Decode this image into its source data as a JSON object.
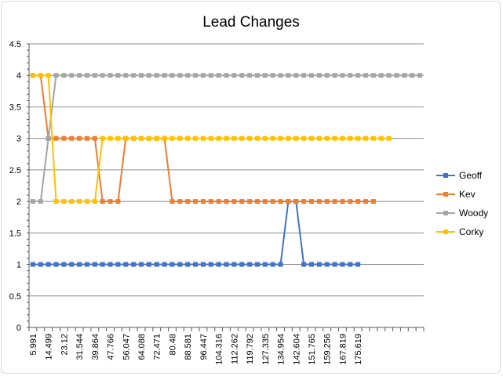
{
  "chart_data": {
    "type": "line",
    "title": "Lead Changes",
    "xlabel": "",
    "ylabel": "",
    "ylim": [
      0,
      4.5
    ],
    "yticks": [
      "0",
      "0.5",
      "1",
      "1.5",
      "2",
      "2.5",
      "3",
      "3.5",
      "4",
      "4.5"
    ],
    "grid": true,
    "legend_position": "right",
    "x_tick_labels": [
      "5.991",
      "14.499",
      "23.12",
      "31.544",
      "39.864",
      "47.766",
      "56.047",
      "64.088",
      "72.471",
      "80.48",
      "88.581",
      "96.447",
      "104.316",
      "112.262",
      "119.792",
      "127.335",
      "134.954",
      "142.604",
      "151.765",
      "159.256",
      "167.819",
      "175.619"
    ],
    "series": [
      {
        "name": "Geoff",
        "color": "#4472c4",
        "marker": "square",
        "values": [
          1,
          1,
          1,
          1,
          1,
          1,
          1,
          1,
          1,
          1,
          1,
          1,
          1,
          1,
          1,
          1,
          1,
          1,
          1,
          1,
          1,
          1,
          1,
          1,
          1,
          1,
          1,
          1,
          1,
          1,
          1,
          1,
          1,
          2,
          2,
          1,
          1,
          1,
          1,
          1,
          1,
          1,
          1
        ]
      },
      {
        "name": "Kev",
        "color": "#ed7d31",
        "marker": "square",
        "values": [
          4,
          4,
          3,
          3,
          3,
          3,
          3,
          3,
          3,
          2,
          2,
          2,
          3,
          3,
          3,
          3,
          3,
          3,
          2,
          2,
          2,
          2,
          2,
          2,
          2,
          2,
          2,
          2,
          2,
          2,
          2,
          2,
          2,
          2,
          2,
          2,
          2,
          2,
          2,
          2,
          2,
          2,
          2,
          2,
          2
        ]
      },
      {
        "name": "Woody",
        "color": "#a5a5a5",
        "marker": "square",
        "values": [
          2,
          2,
          3,
          4,
          4,
          4,
          4,
          4,
          4,
          4,
          4,
          4,
          4,
          4,
          4,
          4,
          4,
          4,
          4,
          4,
          4,
          4,
          4,
          4,
          4,
          4,
          4,
          4,
          4,
          4,
          4,
          4,
          4,
          4,
          4,
          4,
          4,
          4,
          4,
          4,
          4,
          4,
          4,
          4,
          4,
          4,
          4,
          4,
          4,
          4,
          4
        ]
      },
      {
        "name": "Corky",
        "color": "#ffc000",
        "marker": "square",
        "values": [
          4,
          4,
          4,
          2,
          2,
          2,
          2,
          2,
          2,
          3,
          3,
          3,
          3,
          3,
          3,
          3,
          3,
          3,
          3,
          3,
          3,
          3,
          3,
          3,
          3,
          3,
          3,
          3,
          3,
          3,
          3,
          3,
          3,
          3,
          3,
          3,
          3,
          3,
          3,
          3,
          3,
          3,
          3,
          3,
          3,
          3,
          3
        ]
      }
    ]
  }
}
